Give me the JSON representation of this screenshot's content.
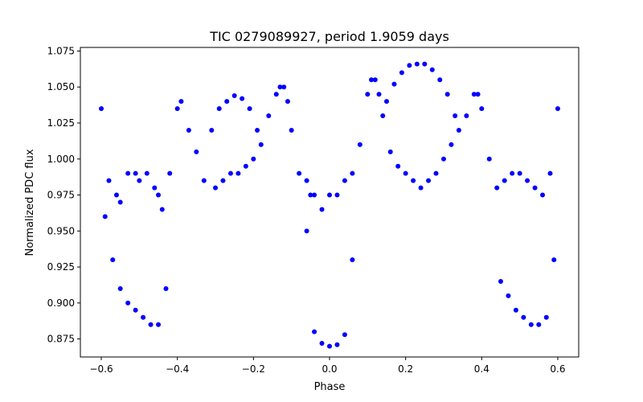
{
  "chart_data": {
    "type": "scatter",
    "title": "TIC 0279089927, period 1.9059 days",
    "xlabel": "Phase",
    "ylabel": "Normalized PDC flux",
    "xlim": [
      -0.655,
      0.655
    ],
    "ylim": [
      0.8625,
      1.0775
    ],
    "x_ticks": [
      -0.6,
      -0.4,
      -0.2,
      0.0,
      0.2,
      0.4,
      0.6
    ],
    "x_tick_labels": [
      "−0.6",
      "−0.4",
      "−0.2",
      "0.0",
      "0.2",
      "0.4",
      "0.6"
    ],
    "y_ticks": [
      0.875,
      0.9,
      0.925,
      0.95,
      0.975,
      1.0,
      1.025,
      1.05,
      1.075
    ],
    "y_tick_labels": [
      "0.875",
      "0.900",
      "0.925",
      "0.950",
      "0.975",
      "1.000",
      "1.025",
      "1.050",
      "1.075"
    ],
    "grid": false,
    "legend": "none",
    "marker_color": "#0000ff",
    "series": [
      {
        "x": [
          -0.6,
          -0.58,
          -0.56,
          -0.55,
          -0.53,
          -0.51,
          -0.5,
          -0.48,
          -0.46,
          -0.45,
          -0.44,
          -0.42,
          -0.4,
          -0.39,
          -0.37,
          -0.35,
          -0.33,
          -0.3,
          -0.28,
          -0.26,
          -0.24,
          -0.22,
          -0.2,
          -0.18,
          -0.16,
          -0.14,
          -0.13,
          -0.12,
          -0.11,
          -0.1,
          -0.08,
          -0.06,
          -0.05,
          -0.04,
          -0.02,
          0.0,
          0.02,
          0.04,
          0.06,
          0.08,
          0.1,
          0.11,
          0.12,
          0.13,
          0.14,
          0.16,
          0.18,
          0.2,
          0.22,
          0.24,
          0.26,
          0.28,
          0.3,
          0.32,
          0.34,
          0.36,
          0.38,
          0.39,
          0.4,
          0.42,
          0.44,
          0.46,
          0.48,
          0.5,
          0.52,
          0.54,
          0.56,
          0.58,
          0.6
        ],
        "y": [
          1.035,
          0.985,
          0.975,
          0.97,
          0.99,
          0.99,
          0.985,
          0.99,
          0.98,
          0.975,
          0.965,
          0.99,
          1.035,
          1.04,
          1.02,
          1.005,
          0.985,
          0.98,
          0.985,
          0.99,
          0.99,
          0.995,
          1.0,
          1.01,
          1.03,
          1.045,
          1.05,
          1.05,
          1.04,
          1.02,
          0.99,
          0.985,
          0.975,
          0.975,
          0.965,
          0.975,
          0.975,
          0.985,
          0.99,
          1.01,
          1.045,
          1.055,
          1.055,
          1.045,
          1.03,
          1.005,
          0.995,
          0.99,
          0.985,
          0.98,
          0.985,
          0.99,
          1.0,
          1.01,
          1.02,
          1.03,
          1.045,
          1.045,
          1.035,
          1.0,
          0.98,
          0.985,
          0.99,
          0.99,
          0.985,
          0.98,
          0.975,
          0.99,
          1.035
        ]
      },
      {
        "x": [
          -0.59,
          -0.57,
          -0.55,
          -0.53,
          -0.51,
          -0.49,
          -0.47,
          -0.45,
          -0.43,
          0.45,
          0.47,
          0.49,
          0.51,
          0.53,
          0.55,
          0.57,
          0.59
        ],
        "y": [
          0.96,
          0.93,
          0.91,
          0.9,
          0.895,
          0.89,
          0.885,
          0.885,
          0.91,
          0.915,
          0.905,
          0.895,
          0.89,
          0.885,
          0.885,
          0.89,
          0.93
        ]
      },
      {
        "x": [
          -0.06,
          -0.04,
          -0.02,
          0.0,
          0.02,
          0.04,
          0.06
        ],
        "y": [
          0.95,
          0.88,
          0.872,
          0.87,
          0.871,
          0.878,
          0.93
        ]
      },
      {
        "x": [
          -0.31,
          -0.29,
          -0.27,
          -0.25,
          -0.23,
          -0.21,
          -0.19,
          0.15,
          0.17,
          0.19,
          0.21,
          0.23,
          0.25,
          0.27,
          0.29,
          0.31,
          0.33
        ],
        "y": [
          1.02,
          1.035,
          1.04,
          1.044,
          1.042,
          1.035,
          1.02,
          1.04,
          1.052,
          1.06,
          1.065,
          1.066,
          1.066,
          1.062,
          1.055,
          1.045,
          1.03
        ]
      }
    ]
  }
}
